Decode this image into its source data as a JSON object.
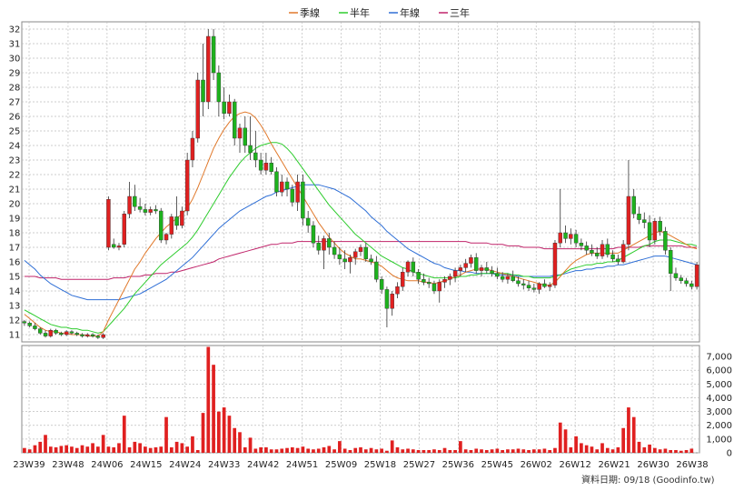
{
  "chart_data": {
    "type": "candlestick",
    "legend": [
      {
        "name": "季線",
        "color": "#E0782A"
      },
      {
        "name": "半年",
        "color": "#2ECC2E"
      },
      {
        "name": "年線",
        "color": "#2F6FD6"
      },
      {
        "name": "三年",
        "color": "#C0246A"
      }
    ],
    "x_ticks": [
      "23W39",
      "23W48",
      "24W06",
      "24W15",
      "24W24",
      "24W33",
      "24W42",
      "24W51",
      "25W09",
      "25W18",
      "25W27",
      "25W36",
      "25W45",
      "26W02",
      "26W12",
      "26W21",
      "26W30",
      "26W38"
    ],
    "price_axis": {
      "ylim": [
        10.5,
        32.5
      ],
      "ticks": [
        11,
        12,
        13,
        14,
        15,
        16,
        17,
        18,
        19,
        20,
        21,
        22,
        23,
        24,
        25,
        26,
        27,
        28,
        29,
        30,
        31,
        32
      ]
    },
    "volume_axis": {
      "ylim": [
        0,
        7800
      ],
      "ticks": [
        "0",
        "1,000",
        "2,000",
        "3,000",
        "4,000",
        "5,000",
        "6,000",
        "7,000"
      ]
    },
    "candles": [
      [
        11.9,
        12.0,
        11.6,
        11.8
      ],
      [
        11.8,
        11.9,
        11.5,
        11.6
      ],
      [
        11.6,
        11.8,
        11.3,
        11.4
      ],
      [
        11.4,
        11.5,
        11.0,
        11.1
      ],
      [
        11.1,
        11.3,
        10.8,
        10.9
      ],
      [
        10.9,
        11.4,
        10.8,
        11.3
      ],
      [
        11.3,
        11.4,
        11.0,
        11.1
      ],
      [
        11.1,
        11.2,
        10.9,
        11.0
      ],
      [
        11.0,
        11.3,
        10.9,
        11.2
      ],
      [
        11.2,
        11.3,
        11.0,
        11.1
      ],
      [
        11.1,
        11.2,
        10.9,
        11.0
      ],
      [
        11.0,
        11.1,
        10.8,
        10.9
      ],
      [
        10.9,
        11.1,
        10.8,
        11.0
      ],
      [
        11.0,
        11.1,
        10.8,
        10.9
      ],
      [
        10.9,
        11.0,
        10.7,
        10.8
      ],
      [
        10.8,
        11.1,
        10.7,
        11.0
      ],
      [
        17.0,
        20.5,
        16.8,
        20.3
      ],
      [
        17.2,
        17.6,
        16.9,
        17.0
      ],
      [
        17.0,
        17.3,
        16.8,
        17.1
      ],
      [
        17.2,
        19.5,
        17.0,
        19.3
      ],
      [
        19.3,
        21.5,
        19.0,
        20.5
      ],
      [
        20.5,
        21.3,
        19.5,
        19.8
      ],
      [
        19.8,
        20.4,
        19.4,
        19.6
      ],
      [
        19.6,
        20.0,
        19.2,
        19.4
      ],
      [
        19.4,
        19.8,
        19.2,
        19.6
      ],
      [
        19.6,
        19.9,
        19.3,
        19.5
      ],
      [
        19.5,
        19.7,
        17.3,
        17.5
      ],
      [
        17.5,
        18.0,
        17.2,
        17.9
      ],
      [
        17.9,
        19.3,
        17.6,
        19.1
      ],
      [
        19.1,
        20.5,
        18.2,
        18.5
      ],
      [
        18.5,
        19.8,
        18.3,
        19.5
      ],
      [
        19.5,
        23.5,
        19.2,
        23.0
      ],
      [
        23.0,
        25.0,
        22.5,
        24.5
      ],
      [
        24.5,
        29.0,
        24.2,
        28.5
      ],
      [
        28.5,
        31.0,
        26.0,
        27.0
      ],
      [
        27.0,
        32.0,
        26.5,
        31.5
      ],
      [
        31.5,
        32.0,
        28.5,
        29.0
      ],
      [
        29.0,
        29.5,
        26.0,
        27.0
      ],
      [
        27.0,
        28.0,
        25.8,
        26.2
      ],
      [
        26.2,
        27.5,
        26.0,
        27.0
      ],
      [
        27.0,
        27.2,
        24.0,
        24.5
      ],
      [
        24.5,
        25.5,
        23.5,
        25.2
      ],
      [
        25.2,
        26.0,
        23.5,
        24.0
      ],
      [
        24.0,
        26.0,
        23.0,
        23.5
      ],
      [
        23.5,
        25.0,
        22.5,
        23.0
      ],
      [
        23.0,
        23.5,
        22.0,
        22.3
      ],
      [
        22.3,
        23.5,
        22.0,
        22.8
      ],
      [
        22.8,
        23.2,
        22.0,
        22.2
      ],
      [
        22.2,
        22.5,
        20.5,
        20.8
      ],
      [
        20.8,
        22.0,
        20.5,
        21.5
      ],
      [
        21.5,
        21.8,
        20.5,
        21.0
      ],
      [
        21.0,
        21.3,
        19.8,
        20.1
      ],
      [
        20.1,
        22.0,
        19.5,
        21.5
      ],
      [
        21.5,
        22.0,
        18.5,
        19.0
      ],
      [
        19.0,
        19.5,
        18.0,
        18.5
      ],
      [
        18.5,
        18.8,
        17.0,
        17.3
      ],
      [
        17.3,
        17.8,
        16.5,
        16.8
      ],
      [
        16.8,
        17.8,
        15.5,
        17.6
      ],
      [
        17.6,
        18.0,
        16.5,
        17.0
      ],
      [
        17.0,
        17.4,
        16.2,
        16.5
      ],
      [
        16.5,
        17.0,
        15.8,
        16.2
      ],
      [
        16.2,
        16.8,
        15.5,
        16.0
      ],
      [
        16.0,
        16.5,
        15.2,
        16.3
      ],
      [
        16.3,
        16.9,
        15.8,
        16.7
      ],
      [
        16.7,
        17.2,
        16.4,
        17.0
      ],
      [
        17.0,
        17.3,
        16.0,
        16.2
      ],
      [
        16.2,
        16.5,
        15.8,
        16.0
      ],
      [
        16.0,
        16.4,
        14.6,
        14.8
      ],
      [
        14.8,
        15.0,
        13.8,
        14.1
      ],
      [
        14.1,
        14.3,
        11.5,
        12.8
      ],
      [
        12.8,
        14.0,
        12.3,
        13.8
      ],
      [
        13.8,
        14.6,
        13.5,
        14.3
      ],
      [
        14.3,
        15.6,
        14.0,
        15.3
      ],
      [
        15.3,
        16.1,
        15.0,
        16.0
      ],
      [
        16.0,
        16.3,
        15.0,
        15.3
      ],
      [
        15.3,
        15.5,
        14.5,
        14.8
      ],
      [
        14.8,
        15.2,
        14.4,
        14.6
      ],
      [
        14.6,
        14.9,
        14.2,
        14.5
      ],
      [
        14.5,
        14.7,
        13.8,
        14.0
      ],
      [
        14.0,
        14.8,
        13.2,
        14.6
      ],
      [
        14.6,
        15.0,
        14.2,
        14.8
      ],
      [
        14.8,
        15.2,
        14.4,
        15.0
      ],
      [
        15.0,
        15.6,
        14.6,
        15.4
      ],
      [
        15.4,
        15.8,
        15.0,
        15.6
      ],
      [
        15.6,
        16.2,
        15.3,
        15.9
      ],
      [
        15.9,
        16.5,
        15.6,
        16.3
      ],
      [
        16.3,
        16.6,
        15.2,
        15.4
      ],
      [
        15.4,
        15.8,
        15.0,
        15.6
      ],
      [
        15.6,
        16.0,
        15.2,
        15.4
      ],
      [
        15.4,
        15.7,
        15.0,
        15.2
      ],
      [
        15.2,
        15.6,
        14.8,
        15.0
      ],
      [
        15.0,
        15.3,
        14.6,
        14.8
      ],
      [
        14.8,
        15.2,
        14.5,
        15.0
      ],
      [
        15.0,
        15.4,
        14.6,
        14.7
      ],
      [
        14.7,
        15.0,
        14.3,
        14.5
      ],
      [
        14.5,
        14.8,
        14.1,
        14.4
      ],
      [
        14.4,
        14.7,
        14.0,
        14.2
      ],
      [
        14.2,
        14.5,
        13.9,
        14.1
      ],
      [
        14.1,
        14.6,
        13.8,
        14.5
      ],
      [
        14.5,
        14.8,
        14.2,
        14.3
      ],
      [
        14.3,
        14.6,
        14.0,
        14.4
      ],
      [
        14.4,
        17.5,
        14.2,
        17.3
      ],
      [
        17.3,
        21.0,
        17.0,
        18.0
      ],
      [
        18.0,
        18.5,
        17.3,
        17.6
      ],
      [
        17.6,
        18.3,
        17.2,
        17.9
      ],
      [
        17.9,
        18.2,
        17.0,
        17.3
      ],
      [
        17.3,
        17.6,
        16.8,
        17.1
      ],
      [
        17.1,
        17.4,
        16.5,
        16.8
      ],
      [
        16.8,
        17.2,
        16.4,
        16.6
      ],
      [
        16.6,
        17.0,
        16.2,
        16.4
      ],
      [
        16.4,
        17.5,
        16.2,
        17.2
      ],
      [
        17.2,
        17.6,
        16.3,
        16.5
      ],
      [
        16.5,
        16.8,
        16.0,
        16.2
      ],
      [
        16.2,
        16.5,
        15.8,
        16.0
      ],
      [
        16.0,
        17.5,
        15.9,
        17.2
      ],
      [
        17.2,
        23.0,
        16.8,
        20.5
      ],
      [
        20.5,
        21.0,
        19.0,
        19.3
      ],
      [
        19.3,
        19.8,
        18.6,
        18.9
      ],
      [
        18.9,
        19.4,
        18.3,
        18.7
      ],
      [
        18.7,
        19.2,
        17.0,
        17.5
      ],
      [
        17.5,
        19.0,
        17.2,
        18.8
      ],
      [
        18.8,
        19.1,
        17.8,
        18.1
      ],
      [
        18.1,
        18.4,
        16.5,
        16.8
      ],
      [
        16.8,
        17.0,
        14.0,
        15.2
      ],
      [
        15.2,
        15.6,
        14.7,
        14.9
      ],
      [
        14.9,
        15.1,
        14.5,
        14.7
      ],
      [
        14.7,
        14.9,
        14.3,
        14.5
      ],
      [
        14.5,
        14.7,
        14.1,
        14.3
      ],
      [
        14.3,
        16.0,
        14.1,
        15.8
      ]
    ],
    "volumes": [
      350,
      250,
      550,
      800,
      1300,
      450,
      400,
      500,
      550,
      450,
      350,
      550,
      450,
      700,
      450,
      1300,
      450,
      400,
      700,
      2700,
      400,
      800,
      700,
      450,
      350,
      400,
      450,
      2600,
      400,
      800,
      700,
      450,
      1200,
      200,
      2900,
      7700,
      6400,
      3000,
      3300,
      2700,
      1800,
      1500,
      400,
      1100,
      300,
      400,
      400,
      250,
      250,
      300,
      350,
      400,
      350,
      450,
      300,
      250,
      300,
      400,
      500,
      250,
      850,
      300,
      200,
      350,
      400,
      250,
      350,
      250,
      300,
      150,
      900,
      400,
      250,
      300,
      250,
      200,
      200,
      200,
      250,
      200,
      350,
      200,
      200,
      850,
      250,
      200,
      300,
      250,
      200,
      250,
      300,
      200,
      250,
      250,
      300,
      250,
      200,
      250,
      250,
      300,
      200,
      350,
      2200,
      1700,
      400,
      1200,
      700,
      550,
      450,
      250,
      700,
      350,
      250,
      400,
      1800,
      3300,
      2600,
      800,
      400,
      600,
      350,
      250,
      300,
      200,
      200,
      150,
      200,
      300
    ],
    "ma_quarter": [
      12.4,
      12.1,
      11.8,
      11.5,
      11.3,
      11.2,
      11.2,
      11.1,
      11.1,
      11.0,
      11.0,
      11.0,
      10.9,
      10.9,
      10.9,
      11.2,
      12.0,
      12.7,
      13.4,
      14.1,
      14.8,
      15.5,
      16.0,
      16.6,
      17.1,
      17.6,
      18.0,
      18.4,
      18.7,
      19.0,
      19.3,
      19.7,
      20.3,
      21.1,
      22.0,
      22.9,
      23.8,
      24.5,
      25.1,
      25.6,
      26.0,
      26.2,
      26.3,
      26.2,
      25.9,
      25.4,
      24.8,
      24.1,
      23.5,
      22.9,
      22.3,
      21.7,
      21.1,
      20.5,
      19.9,
      19.3,
      18.7,
      18.2,
      17.7,
      17.3,
      16.9,
      16.6,
      16.4,
      16.2,
      16.2,
      16.1,
      16.0,
      15.9,
      15.7,
      15.4,
      15.1,
      14.9,
      14.8,
      14.7,
      14.7,
      14.7,
      14.6,
      14.6,
      14.5,
      14.6,
      14.7,
      14.8,
      15.0,
      15.1,
      15.3,
      15.4,
      15.5,
      15.5,
      15.5,
      15.4,
      15.3,
      15.2,
      15.1,
      15.0,
      14.9,
      14.8,
      14.7,
      14.6,
      14.5,
      14.4,
      14.4,
      14.6,
      15.0,
      15.4,
      15.8,
      16.1,
      16.3,
      16.5,
      16.6,
      16.6,
      16.6,
      16.6,
      16.6,
      16.6,
      16.8,
      17.0,
      17.2,
      17.4,
      17.6,
      17.8,
      18.0,
      18.1,
      18.0,
      17.8,
      17.6,
      17.4,
      17.2,
      17.0,
      16.9
    ],
    "ma_half": [
      12.7,
      12.5,
      12.3,
      12.1,
      11.9,
      11.7,
      11.6,
      11.5,
      11.5,
      11.4,
      11.4,
      11.3,
      11.3,
      11.2,
      11.1,
      11.2,
      11.6,
      12.0,
      12.4,
      12.8,
      13.3,
      13.8,
      14.2,
      14.6,
      15.0,
      15.4,
      15.8,
      16.1,
      16.4,
      16.7,
      17.0,
      17.3,
      17.7,
      18.2,
      18.8,
      19.4,
      20.0,
      20.6,
      21.2,
      21.8,
      22.3,
      22.8,
      23.2,
      23.5,
      23.8,
      24.0,
      24.1,
      24.2,
      24.2,
      24.1,
      23.8,
      23.4,
      22.9,
      22.4,
      21.9,
      21.4,
      20.9,
      20.4,
      19.9,
      19.5,
      19.1,
      18.7,
      18.3,
      17.9,
      17.6,
      17.3,
      17.0,
      16.7,
      16.4,
      16.2,
      16.0,
      15.8,
      15.6,
      15.5,
      15.3,
      15.2,
      15.1,
      15.0,
      14.9,
      14.9,
      14.9,
      14.9,
      14.9,
      15.0,
      15.0,
      15.1,
      15.1,
      15.2,
      15.2,
      15.2,
      15.2,
      15.2,
      15.2,
      15.1,
      15.1,
      15.0,
      15.0,
      14.9,
      14.9,
      14.9,
      14.9,
      15.0,
      15.1,
      15.3,
      15.5,
      15.6,
      15.7,
      15.8,
      15.8,
      15.9,
      15.9,
      16.0,
      16.0,
      16.1,
      16.3,
      16.5,
      16.7,
      16.9,
      17.1,
      17.2,
      17.4,
      17.5,
      17.5,
      17.5,
      17.4,
      17.3,
      17.2,
      17.2,
      17.1
    ],
    "ma_year": [
      16.1,
      15.8,
      15.5,
      15.1,
      14.8,
      14.5,
      14.3,
      14.1,
      13.9,
      13.7,
      13.6,
      13.5,
      13.4,
      13.4,
      13.4,
      13.4,
      13.4,
      13.4,
      13.4,
      13.5,
      13.6,
      13.7,
      13.8,
      14.0,
      14.2,
      14.4,
      14.6,
      14.8,
      15.1,
      15.4,
      15.7,
      16.0,
      16.3,
      16.7,
      17.1,
      17.5,
      17.9,
      18.3,
      18.6,
      18.9,
      19.2,
      19.5,
      19.7,
      19.9,
      20.1,
      20.3,
      20.5,
      20.6,
      20.8,
      20.9,
      21.0,
      21.1,
      21.2,
      21.3,
      21.3,
      21.3,
      21.3,
      21.2,
      21.1,
      21.0,
      20.8,
      20.6,
      20.4,
      20.1,
      19.8,
      19.5,
      19.1,
      18.8,
      18.5,
      18.1,
      17.8,
      17.5,
      17.2,
      16.9,
      16.7,
      16.5,
      16.3,
      16.1,
      15.9,
      15.8,
      15.6,
      15.5,
      15.4,
      15.4,
      15.3,
      15.3,
      15.2,
      15.2,
      15.2,
      15.2,
      15.1,
      15.1,
      15.1,
      15.1,
      15.0,
      15.0,
      15.0,
      15.0,
      15.0,
      15.0,
      15.0,
      15.1,
      15.1,
      15.2,
      15.3,
      15.4,
      15.4,
      15.5,
      15.5,
      15.6,
      15.6,
      15.7,
      15.7,
      15.8,
      15.8,
      15.9,
      16.0,
      16.1,
      16.2,
      16.3,
      16.4,
      16.4,
      16.4,
      16.3,
      16.2,
      16.1,
      16.0,
      15.9,
      15.8
    ],
    "ma_3year": [
      15.0,
      15.0,
      15.0,
      14.9,
      14.9,
      14.9,
      14.9,
      14.8,
      14.8,
      14.8,
      14.8,
      14.8,
      14.8,
      14.8,
      14.8,
      14.8,
      14.8,
      14.9,
      14.9,
      14.9,
      15.0,
      15.0,
      15.0,
      15.1,
      15.1,
      15.2,
      15.2,
      15.2,
      15.3,
      15.3,
      15.4,
      15.5,
      15.6,
      15.7,
      15.8,
      15.9,
      16.0,
      16.2,
      16.3,
      16.4,
      16.5,
      16.6,
      16.7,
      16.8,
      16.9,
      17.0,
      17.1,
      17.2,
      17.2,
      17.3,
      17.3,
      17.3,
      17.4,
      17.4,
      17.4,
      17.4,
      17.4,
      17.4,
      17.4,
      17.4,
      17.4,
      17.4,
      17.4,
      17.4,
      17.4,
      17.4,
      17.4,
      17.4,
      17.4,
      17.4,
      17.4,
      17.4,
      17.4,
      17.4,
      17.4,
      17.4,
      17.4,
      17.4,
      17.4,
      17.4,
      17.4,
      17.4,
      17.4,
      17.4,
      17.4,
      17.3,
      17.3,
      17.3,
      17.3,
      17.2,
      17.2,
      17.2,
      17.1,
      17.1,
      17.1,
      17.0,
      17.0,
      17.0,
      17.0,
      16.9,
      16.9,
      16.9,
      16.9,
      16.9,
      16.9,
      16.9,
      16.9,
      16.9,
      16.9,
      16.9,
      16.9,
      16.9,
      16.9,
      17.0,
      17.0,
      17.0,
      17.0,
      17.0,
      17.1,
      17.1,
      17.1,
      17.1,
      17.1,
      17.1,
      17.1,
      17.1,
      17.0,
      17.0,
      17.0
    ],
    "up_color": "#E02020",
    "down_color": "#1DB21D",
    "grid": true
  },
  "footer": {
    "text": "資料日期: 09/18  (Goodinfo.tw)"
  }
}
